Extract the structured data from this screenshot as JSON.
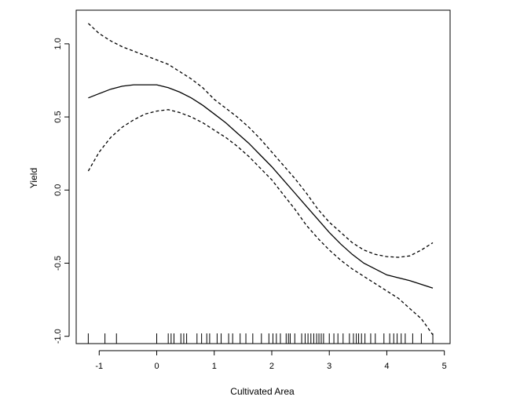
{
  "chart_data": {
    "type": "line",
    "title": "",
    "xlabel": "Cultivated Area",
    "ylabel": "Yield",
    "xlim": [
      -1.4,
      5.1
    ],
    "ylim": [
      -1.05,
      1.23
    ],
    "xticks": [
      -1,
      0,
      1,
      2,
      3,
      4,
      5
    ],
    "yticks": [
      -1.0,
      -0.5,
      0.0,
      0.5,
      1.0
    ],
    "xtick_labels": [
      "-1",
      "0",
      "1",
      "2",
      "3",
      "4",
      "5"
    ],
    "ytick_labels": [
      "-1.0",
      "-0.5",
      "0.0",
      "0.5",
      "1.0"
    ],
    "grid": false,
    "legend": "none",
    "series": [
      {
        "role": "fit",
        "style": "solid",
        "points": [
          [
            -1.19,
            0.63
          ],
          [
            -1.0,
            0.66
          ],
          [
            -0.8,
            0.69
          ],
          [
            -0.6,
            0.71
          ],
          [
            -0.4,
            0.72
          ],
          [
            -0.2,
            0.72
          ],
          [
            0.0,
            0.72
          ],
          [
            0.2,
            0.7
          ],
          [
            0.4,
            0.67
          ],
          [
            0.6,
            0.63
          ],
          [
            0.8,
            0.58
          ],
          [
            1.0,
            0.52
          ],
          [
            1.2,
            0.46
          ],
          [
            1.4,
            0.39
          ],
          [
            1.6,
            0.32
          ],
          [
            1.8,
            0.24
          ],
          [
            2.0,
            0.16
          ],
          [
            2.2,
            0.07
          ],
          [
            2.4,
            -0.02
          ],
          [
            2.6,
            -0.11
          ],
          [
            2.8,
            -0.2
          ],
          [
            3.0,
            -0.29
          ],
          [
            3.2,
            -0.37
          ],
          [
            3.4,
            -0.44
          ],
          [
            3.6,
            -0.5
          ],
          [
            3.8,
            -0.54
          ],
          [
            4.0,
            -0.58
          ],
          [
            4.2,
            -0.6
          ],
          [
            4.4,
            -0.62
          ],
          [
            4.6,
            -0.645
          ],
          [
            4.8,
            -0.67
          ]
        ]
      },
      {
        "role": "upper-band",
        "style": "dashed",
        "points": [
          [
            -1.19,
            1.14
          ],
          [
            -1.0,
            1.07
          ],
          [
            -0.8,
            1.02
          ],
          [
            -0.6,
            0.98
          ],
          [
            -0.4,
            0.95
          ],
          [
            -0.2,
            0.92
          ],
          [
            0.0,
            0.89
          ],
          [
            0.2,
            0.86
          ],
          [
            0.4,
            0.81
          ],
          [
            0.6,
            0.76
          ],
          [
            0.8,
            0.7
          ],
          [
            1.0,
            0.62
          ],
          [
            1.2,
            0.56
          ],
          [
            1.4,
            0.5
          ],
          [
            1.6,
            0.43
          ],
          [
            1.8,
            0.35
          ],
          [
            2.0,
            0.26
          ],
          [
            2.2,
            0.17
          ],
          [
            2.4,
            0.08
          ],
          [
            2.6,
            -0.02
          ],
          [
            2.8,
            -0.13
          ],
          [
            3.0,
            -0.22
          ],
          [
            3.2,
            -0.29
          ],
          [
            3.4,
            -0.36
          ],
          [
            3.6,
            -0.41
          ],
          [
            3.8,
            -0.44
          ],
          [
            4.0,
            -0.455
          ],
          [
            4.2,
            -0.46
          ],
          [
            4.4,
            -0.45
          ],
          [
            4.6,
            -0.41
          ],
          [
            4.8,
            -0.36
          ]
        ]
      },
      {
        "role": "lower-band",
        "style": "dashed",
        "points": [
          [
            -1.19,
            0.13
          ],
          [
            -1.0,
            0.26
          ],
          [
            -0.8,
            0.36
          ],
          [
            -0.6,
            0.43
          ],
          [
            -0.4,
            0.48
          ],
          [
            -0.2,
            0.52
          ],
          [
            0.0,
            0.54
          ],
          [
            0.2,
            0.55
          ],
          [
            0.4,
            0.53
          ],
          [
            0.6,
            0.5
          ],
          [
            0.8,
            0.46
          ],
          [
            1.0,
            0.41
          ],
          [
            1.2,
            0.36
          ],
          [
            1.4,
            0.3
          ],
          [
            1.6,
            0.23
          ],
          [
            1.8,
            0.15
          ],
          [
            2.0,
            0.07
          ],
          [
            2.2,
            -0.03
          ],
          [
            2.4,
            -0.13
          ],
          [
            2.6,
            -0.24
          ],
          [
            2.8,
            -0.33
          ],
          [
            3.0,
            -0.41
          ],
          [
            3.2,
            -0.48
          ],
          [
            3.4,
            -0.54
          ],
          [
            3.6,
            -0.59
          ],
          [
            3.8,
            -0.64
          ],
          [
            4.0,
            -0.69
          ],
          [
            4.2,
            -0.74
          ],
          [
            4.4,
            -0.81
          ],
          [
            4.6,
            -0.88
          ],
          [
            4.8,
            -0.99
          ]
        ]
      }
    ],
    "rug": [
      -1.19,
      -0.9,
      -0.7,
      0.0,
      0.2,
      0.25,
      0.3,
      0.42,
      0.47,
      0.52,
      0.7,
      0.78,
      0.87,
      0.92,
      1.05,
      1.12,
      1.25,
      1.32,
      1.45,
      1.55,
      1.67,
      1.82,
      1.95,
      2.02,
      2.08,
      2.15,
      2.25,
      2.29,
      2.32,
      2.4,
      2.52,
      2.58,
      2.63,
      2.68,
      2.73,
      2.78,
      2.82,
      2.86,
      2.9,
      3.0,
      3.08,
      3.15,
      3.24,
      3.35,
      3.42,
      3.47,
      3.51,
      3.56,
      3.62,
      3.72,
      3.8,
      3.95,
      4.05,
      4.12,
      4.18,
      4.25,
      4.32,
      4.45,
      4.6,
      4.8
    ]
  }
}
